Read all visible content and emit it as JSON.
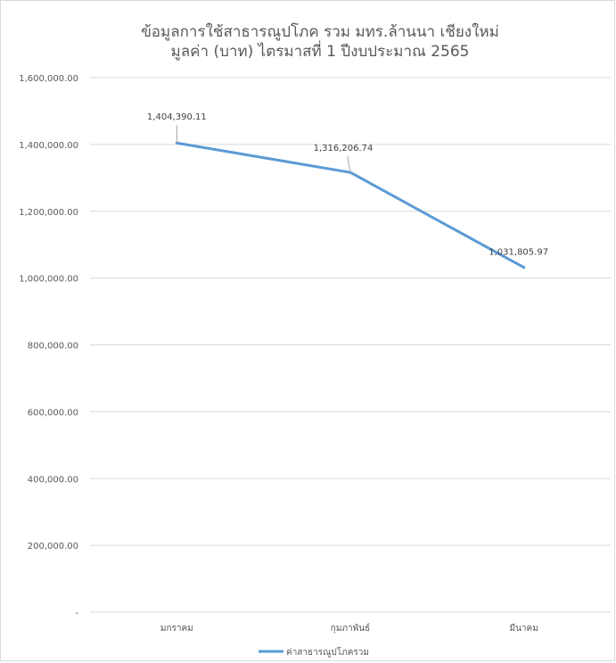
{
  "chart_data": {
    "type": "line",
    "title_lines": [
      "ข้อมูลการใช้สาธารณูปโภค รวม มทร.ล้านนา เชียงใหม่",
      "มูลค่า (บาท) ไตรมาสที่ 1 ปีงบประมาณ 2565"
    ],
    "categories": [
      "มกราคม",
      "กุมภาพันธ์",
      "มีนาคม"
    ],
    "series": [
      {
        "name": "ค่าสาธารณูปโภครวม",
        "values": [
          1404390.11,
          1316206.74,
          1031805.97
        ],
        "value_labels": [
          "1,404,390.11",
          "1,316,206.74",
          "1,031,805.97"
        ],
        "color": "#5b9bd5"
      }
    ],
    "y_ticks": [
      0,
      200000,
      400000,
      600000,
      800000,
      1000000,
      1200000,
      1400000,
      1600000
    ],
    "y_tick_labels": [
      "-",
      "200,000.00",
      "400,000.00",
      "600,000.00",
      "800,000.00",
      "1,000,000.00",
      "1,200,000.00",
      "1,400,000.00",
      "1,600,000.00"
    ],
    "ylim": [
      0,
      1600000
    ],
    "grid": true,
    "legend_position": "bottom",
    "gridline_color": "#d9d9d9"
  }
}
